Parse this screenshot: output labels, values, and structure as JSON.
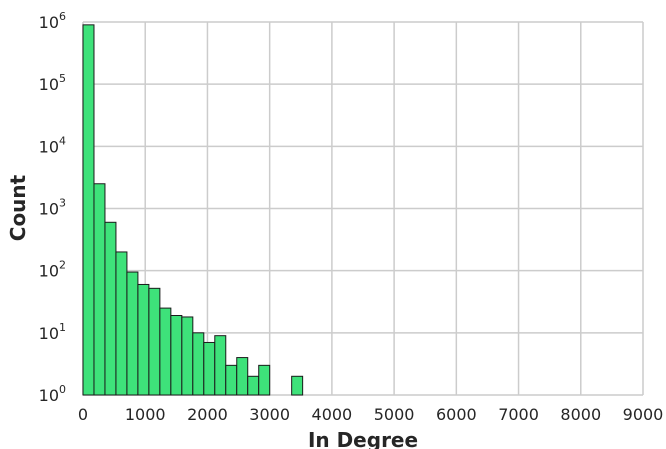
{
  "chart_data": {
    "type": "bar",
    "subtype": "histogram",
    "xlabel": "In Degree",
    "ylabel": "Count",
    "y_scale": "log",
    "xlim": [
      0,
      9000
    ],
    "ylim": [
      1,
      1000000
    ],
    "x_ticks": [
      0,
      1000,
      2000,
      3000,
      4000,
      5000,
      6000,
      7000,
      8000,
      9000
    ],
    "x_tick_labels": [
      "0",
      "1000",
      "2000",
      "3000",
      "4000",
      "5000",
      "6000",
      "7000",
      "8000",
      "9000"
    ],
    "y_tick_labels": [
      {
        "base": "10",
        "exp": "0",
        "value": 1
      },
      {
        "base": "10",
        "exp": "1",
        "value": 10
      },
      {
        "base": "10",
        "exp": "2",
        "value": 100
      },
      {
        "base": "10",
        "exp": "3",
        "value": 1000
      },
      {
        "base": "10",
        "exp": "4",
        "value": 10000
      },
      {
        "base": "10",
        "exp": "5",
        "value": 100000
      },
      {
        "base": "10",
        "exp": "6",
        "value": 1000000
      }
    ],
    "grid": true,
    "bar_color": "#3ee27a",
    "edge_color": "#1a1a1a",
    "bin_width": 176.5,
    "bins": [
      {
        "x": 0,
        "count": 900000
      },
      {
        "x": 176.5,
        "count": 2500
      },
      {
        "x": 353,
        "count": 600
      },
      {
        "x": 529.5,
        "count": 200
      },
      {
        "x": 706,
        "count": 95
      },
      {
        "x": 882.5,
        "count": 60
      },
      {
        "x": 1059,
        "count": 52
      },
      {
        "x": 1235.5,
        "count": 25
      },
      {
        "x": 1412,
        "count": 19
      },
      {
        "x": 1588.5,
        "count": 18
      },
      {
        "x": 1765,
        "count": 10
      },
      {
        "x": 1941.5,
        "count": 7
      },
      {
        "x": 2118,
        "count": 9
      },
      {
        "x": 2294.5,
        "count": 3
      },
      {
        "x": 2471,
        "count": 4
      },
      {
        "x": 2647.5,
        "count": 2
      },
      {
        "x": 2824,
        "count": 3
      },
      {
        "x": 3177,
        "count": 1
      },
      {
        "x": 3353.5,
        "count": 2
      },
      {
        "x": 3883,
        "count": 1
      },
      {
        "x": 4412.5,
        "count": 1
      },
      {
        "x": 4589,
        "count": 1
      },
      {
        "x": 4765.5,
        "count": 1
      },
      {
        "x": 5118.5,
        "count": 1
      },
      {
        "x": 6354,
        "count": 1
      },
      {
        "x": 8119,
        "count": 1
      }
    ]
  }
}
